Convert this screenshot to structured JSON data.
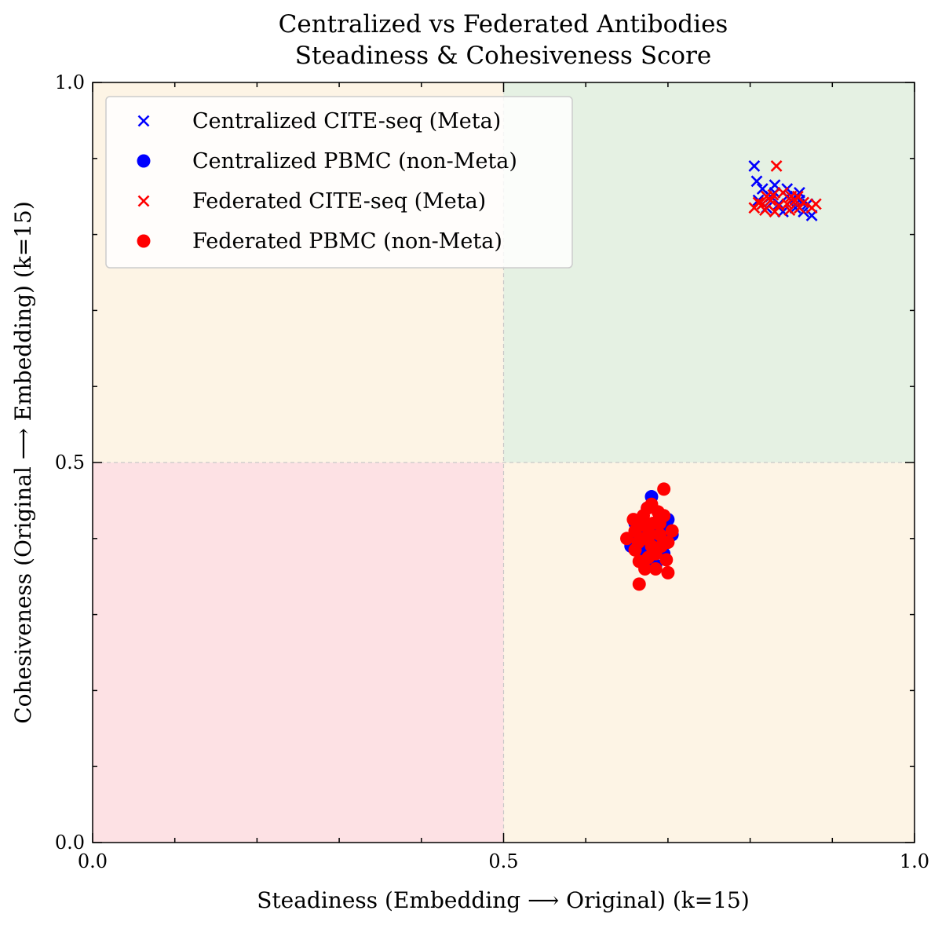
{
  "chart_data": {
    "type": "scatter",
    "title": [
      "Centralized vs Federated Antibodies",
      "Steadiness & Cohesiveness Score"
    ],
    "xlabel": "Steadiness (Embedding ⟶ Original) (k=15)",
    "ylabel": "Cohesiveness (Original ⟶ Embedding) (k=15)",
    "xlim": [
      0.0,
      1.0
    ],
    "ylim": [
      0.0,
      1.0
    ],
    "xticks": [
      "0.0",
      "0.5",
      "1.0"
    ],
    "yticks": [
      "0.0",
      "0.5",
      "1.0"
    ],
    "quadrant_split": 0.5,
    "quadrant_colors": {
      "bottom_left": "#fde1e4",
      "bottom_right": "#fdf4e5",
      "top_left": "#fdf4e5",
      "top_right": "#e5f1e3"
    },
    "grid": false,
    "legend_position": "upper left",
    "series": [
      {
        "name": "Centralized CITE-seq (Meta)",
        "marker": "x",
        "color": "#0000ff",
        "points": [
          [
            0.805,
            0.89
          ],
          [
            0.808,
            0.87
          ],
          [
            0.815,
            0.86
          ],
          [
            0.83,
            0.865
          ],
          [
            0.845,
            0.86
          ],
          [
            0.86,
            0.855
          ],
          [
            0.87,
            0.84
          ],
          [
            0.875,
            0.825
          ],
          [
            0.865,
            0.83
          ],
          [
            0.84,
            0.83
          ],
          [
            0.82,
            0.835
          ],
          [
            0.81,
            0.845
          ],
          [
            0.825,
            0.85
          ],
          [
            0.85,
            0.845
          ],
          [
            0.835,
            0.84
          ],
          [
            0.855,
            0.835
          ],
          [
            0.83,
            0.855
          ],
          [
            0.815,
            0.84
          ],
          [
            0.845,
            0.85
          ],
          [
            0.86,
            0.845
          ]
        ]
      },
      {
        "name": "Centralized PBMC (non-Meta)",
        "marker": "o",
        "color": "#0000ff",
        "points": [
          [
            0.68,
            0.455
          ],
          [
            0.7,
            0.425
          ],
          [
            0.705,
            0.405
          ],
          [
            0.685,
            0.365
          ],
          [
            0.67,
            0.375
          ],
          [
            0.655,
            0.39
          ],
          [
            0.66,
            0.42
          ],
          [
            0.675,
            0.44
          ],
          [
            0.695,
            0.38
          ],
          [
            0.69,
            0.43
          ],
          [
            0.67,
            0.41
          ],
          [
            0.68,
            0.395
          ],
          [
            0.665,
            0.4
          ],
          [
            0.685,
            0.415
          ],
          [
            0.675,
            0.385
          ],
          [
            0.69,
            0.4
          ],
          [
            0.66,
            0.405
          ],
          [
            0.7,
            0.41
          ]
        ]
      },
      {
        "name": "Federated CITE-seq (Meta)",
        "marker": "x",
        "color": "#ff0000",
        "points": [
          [
            0.832,
            0.89
          ],
          [
            0.805,
            0.835
          ],
          [
            0.88,
            0.84
          ],
          [
            0.875,
            0.835
          ],
          [
            0.82,
            0.85
          ],
          [
            0.84,
            0.855
          ],
          [
            0.855,
            0.845
          ],
          [
            0.83,
            0.83
          ],
          [
            0.815,
            0.84
          ],
          [
            0.86,
            0.835
          ],
          [
            0.845,
            0.84
          ],
          [
            0.825,
            0.845
          ],
          [
            0.85,
            0.85
          ],
          [
            0.835,
            0.838
          ],
          [
            0.81,
            0.842
          ],
          [
            0.865,
            0.842
          ],
          [
            0.828,
            0.852
          ],
          [
            0.848,
            0.832
          ],
          [
            0.818,
            0.832
          ],
          [
            0.858,
            0.85
          ]
        ]
      },
      {
        "name": "Federated PBMC (non-Meta)",
        "marker": "o",
        "color": "#ff0000",
        "points": [
          [
            0.695,
            0.465
          ],
          [
            0.665,
            0.34
          ],
          [
            0.7,
            0.355
          ],
          [
            0.65,
            0.4
          ],
          [
            0.68,
            0.445
          ],
          [
            0.67,
            0.43
          ],
          [
            0.69,
            0.42
          ],
          [
            0.685,
            0.38
          ],
          [
            0.66,
            0.41
          ],
          [
            0.7,
            0.395
          ],
          [
            0.675,
            0.415
          ],
          [
            0.665,
            0.37
          ],
          [
            0.69,
            0.405
          ],
          [
            0.68,
            0.39
          ],
          [
            0.67,
            0.4
          ],
          [
            0.695,
            0.43
          ],
          [
            0.66,
            0.385
          ],
          [
            0.685,
            0.36
          ],
          [
            0.675,
            0.44
          ],
          [
            0.705,
            0.41
          ],
          [
            0.672,
            0.36
          ],
          [
            0.688,
            0.435
          ],
          [
            0.658,
            0.425
          ],
          [
            0.698,
            0.372
          ],
          [
            0.678,
            0.405
          ],
          [
            0.664,
            0.395
          ],
          [
            0.692,
            0.39
          ],
          [
            0.676,
            0.375
          ],
          [
            0.682,
            0.42
          ],
          [
            0.668,
            0.418
          ]
        ]
      }
    ]
  }
}
